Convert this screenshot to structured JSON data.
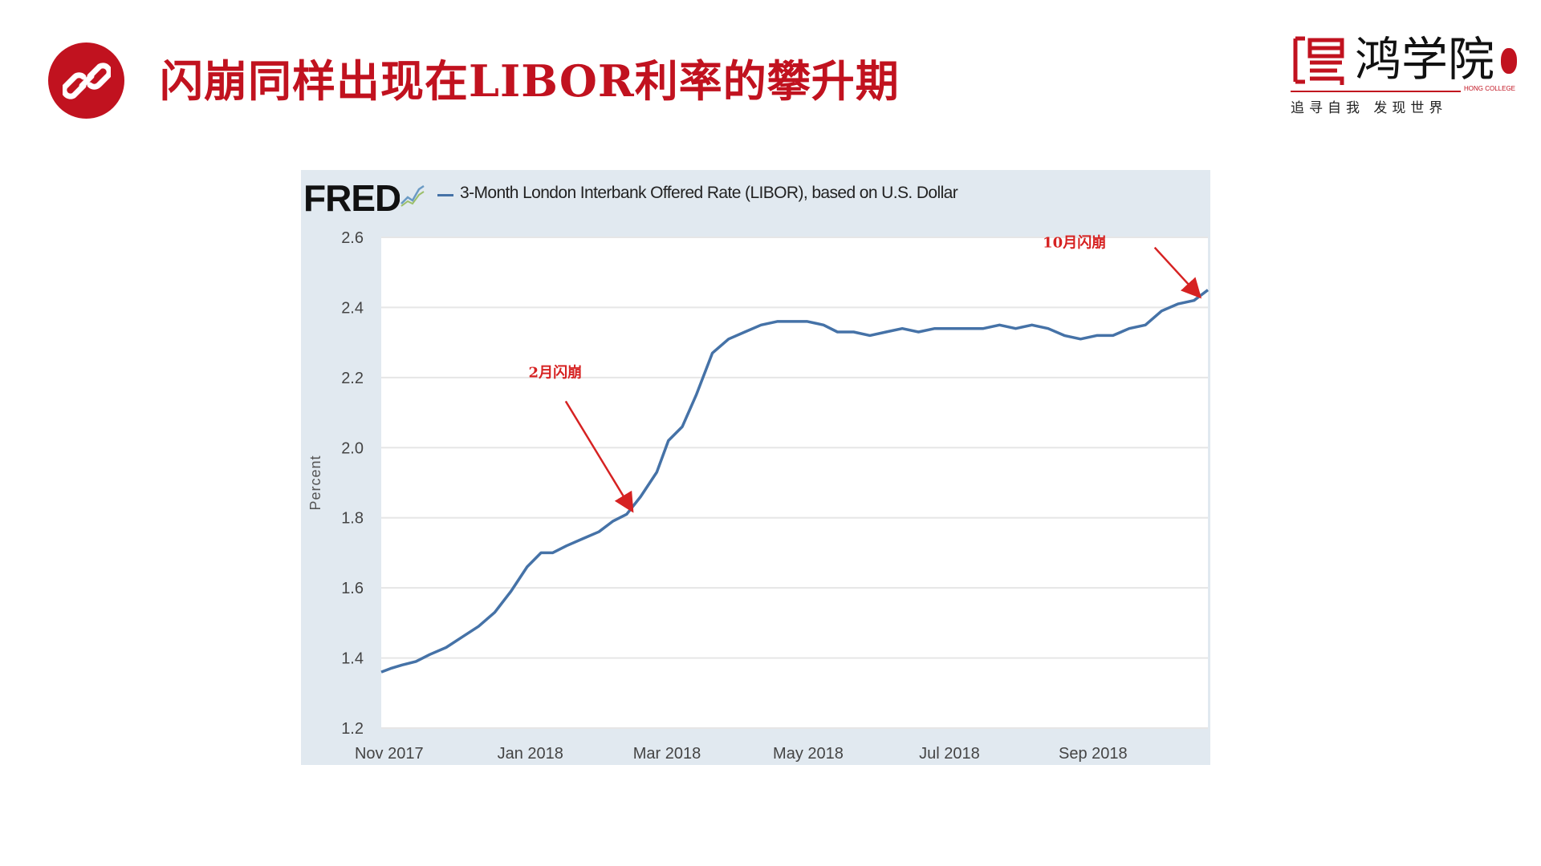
{
  "slide": {
    "title": "闪崩同样出现在LIBOR利率的攀升期",
    "accent_color": "#c1121f",
    "title_icon": "link-icon"
  },
  "logo": {
    "name": "鸿学院",
    "english": "HONG COLLEGE",
    "slogan": "追寻自我 发现世界"
  },
  "chart_data": {
    "type": "line",
    "source_logo": "FRED",
    "series": [
      {
        "name": "3-Month London Interbank Offered Rate (LIBOR), based on U.S. Dollar",
        "color": "#4572a7",
        "points": [
          [
            "2017-10-30",
            1.36
          ],
          [
            "2017-11-03",
            1.37
          ],
          [
            "2017-11-08",
            1.38
          ],
          [
            "2017-11-14",
            1.39
          ],
          [
            "2017-11-20",
            1.41
          ],
          [
            "2017-11-27",
            1.43
          ],
          [
            "2017-12-04",
            1.46
          ],
          [
            "2017-12-11",
            1.49
          ],
          [
            "2017-12-18",
            1.53
          ],
          [
            "2017-12-25",
            1.59
          ],
          [
            "2018-01-01",
            1.66
          ],
          [
            "2018-01-07",
            1.7
          ],
          [
            "2018-01-12",
            1.7
          ],
          [
            "2018-01-18",
            1.72
          ],
          [
            "2018-01-25",
            1.74
          ],
          [
            "2018-02-01",
            1.76
          ],
          [
            "2018-02-07",
            1.79
          ],
          [
            "2018-02-13",
            1.81
          ],
          [
            "2018-02-19",
            1.86
          ],
          [
            "2018-02-26",
            1.93
          ],
          [
            "2018-03-03",
            2.02
          ],
          [
            "2018-03-09",
            2.06
          ],
          [
            "2018-03-15",
            2.15
          ],
          [
            "2018-03-22",
            2.27
          ],
          [
            "2018-03-29",
            2.31
          ],
          [
            "2018-04-05",
            2.33
          ],
          [
            "2018-04-12",
            2.35
          ],
          [
            "2018-04-19",
            2.36
          ],
          [
            "2018-04-26",
            2.36
          ],
          [
            "2018-05-02",
            2.36
          ],
          [
            "2018-05-09",
            2.35
          ],
          [
            "2018-05-15",
            2.33
          ],
          [
            "2018-05-22",
            2.33
          ],
          [
            "2018-05-29",
            2.32
          ],
          [
            "2018-06-05",
            2.33
          ],
          [
            "2018-06-12",
            2.34
          ],
          [
            "2018-06-19",
            2.33
          ],
          [
            "2018-06-26",
            2.34
          ],
          [
            "2018-07-03",
            2.34
          ],
          [
            "2018-07-10",
            2.34
          ],
          [
            "2018-07-17",
            2.34
          ],
          [
            "2018-07-24",
            2.35
          ],
          [
            "2018-07-31",
            2.34
          ],
          [
            "2018-08-07",
            2.35
          ],
          [
            "2018-08-14",
            2.34
          ],
          [
            "2018-08-21",
            2.32
          ],
          [
            "2018-08-28",
            2.31
          ],
          [
            "2018-09-04",
            2.32
          ],
          [
            "2018-09-11",
            2.32
          ],
          [
            "2018-09-18",
            2.34
          ],
          [
            "2018-09-25",
            2.35
          ],
          [
            "2018-10-02",
            2.39
          ],
          [
            "2018-10-09",
            2.41
          ],
          [
            "2018-10-16",
            2.42
          ],
          [
            "2018-10-22",
            2.45
          ]
        ]
      }
    ],
    "x_axis": {
      "range": [
        "2017-10-30",
        "2018-10-22"
      ],
      "ticks": [
        {
          "label": "Nov 2017",
          "date": "2017-11-01"
        },
        {
          "label": "Jan 2018",
          "date": "2018-01-01"
        },
        {
          "label": "Mar 2018",
          "date": "2018-03-01"
        },
        {
          "label": "May 2018",
          "date": "2018-05-01"
        },
        {
          "label": "Jul 2018",
          "date": "2018-07-01"
        },
        {
          "label": "Sep 2018",
          "date": "2018-09-01"
        }
      ]
    },
    "y_axis": {
      "label": "Percent",
      "range": [
        1.2,
        2.6
      ],
      "ticks": [
        "1.2",
        "1.4",
        "1.6",
        "1.8",
        "2.0",
        "2.2",
        "2.4",
        "2.6"
      ]
    },
    "grid": true,
    "legend": "top-left",
    "annotations": [
      {
        "text": "2月闪崩",
        "arrow_to": [
          "2018-02-13",
          1.81
        ],
        "color": "#d62222"
      },
      {
        "text": "10月闪崩",
        "arrow_to": [
          "2018-10-16",
          2.42
        ],
        "color": "#d62222"
      }
    ]
  }
}
